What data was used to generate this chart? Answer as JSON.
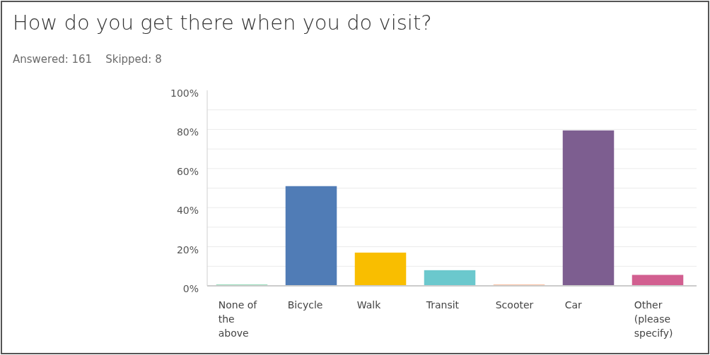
{
  "chart_data": {
    "type": "bar",
    "title": "How do you get there when you do visit?",
    "subtitle": "Answered: 161    Skipped: 8",
    "categories": [
      "None of the above",
      "Bicycle",
      "Walk",
      "Transit",
      "Scooter",
      "Car",
      "Other (please specify)"
    ],
    "values": [
      0.6,
      51,
      17,
      8,
      0.6,
      79.5,
      5.6
    ],
    "colors": [
      "#5cc994",
      "#507cb6",
      "#f9be00",
      "#6bc8cd",
      "#f7a072",
      "#7d5e90",
      "#d25f90"
    ],
    "ylim": [
      0,
      100
    ],
    "yticks": [
      {
        "value": 0,
        "label": "0%"
      },
      {
        "value": 20,
        "label": "20%"
      },
      {
        "value": 40,
        "label": "40%"
      },
      {
        "value": 60,
        "label": "60%"
      },
      {
        "value": 80,
        "label": "80%"
      },
      {
        "value": 100,
        "label": "100%"
      }
    ],
    "grid": "y"
  }
}
